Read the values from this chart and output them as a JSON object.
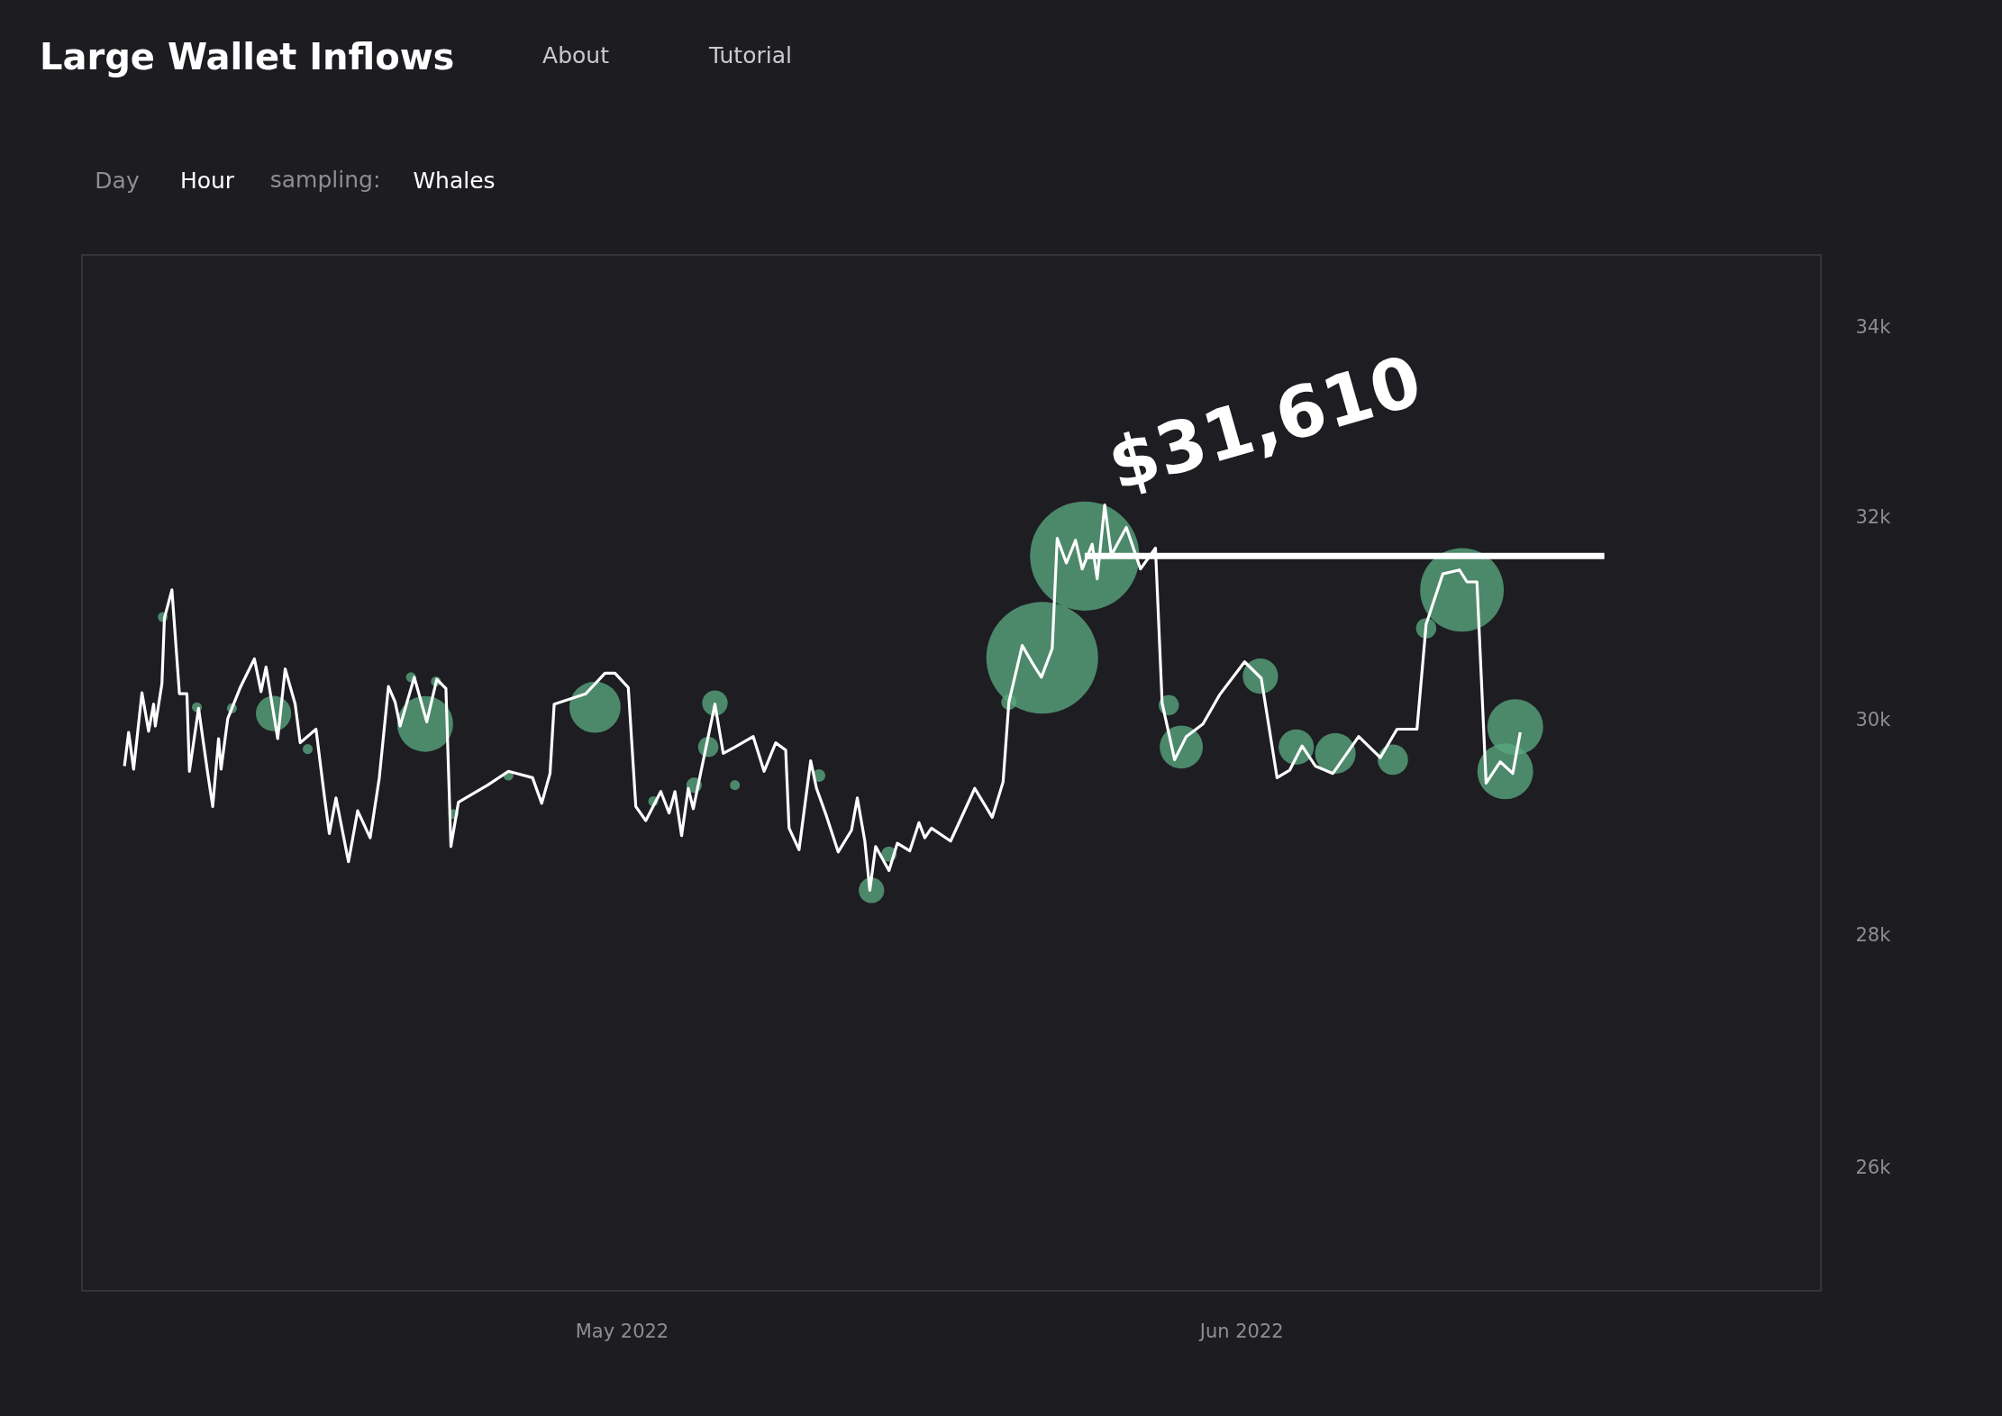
{
  "chart_data": {
    "type": "line",
    "title": "Large Wallet Inflows",
    "annotations": [
      "About",
      "Tutorial",
      "Day",
      "Hour",
      "sampling:",
      "Whales",
      {
        "text": "$31,610",
        "x": "2022-06-04T02:00",
        "y": 31610
      }
    ],
    "log": "y",
    "grid": false,
    "xlim": [
      "2022-04-04",
      "2022-06-30"
    ],
    "xticks": [
      {
        "value": "2022-05-01",
        "label": "May 2022"
      },
      {
        "value": "2022-06-01",
        "label": "Jun 2022"
      }
    ],
    "ylim": [
      25000,
      34800
    ],
    "yticks": [
      {
        "value": 26000,
        "label": "26k"
      },
      {
        "value": 28000,
        "label": "28k"
      },
      {
        "value": 30000,
        "label": "30k"
      },
      {
        "value": 32000,
        "label": "32k"
      },
      {
        "value": 34000,
        "label": "34k"
      }
    ],
    "series": [
      {
        "color": "#ffffff",
        "x": [
          "2022-04-06T03:00",
          "2022-04-06T08:00",
          "2022-04-06T14:00",
          "2022-04-07T00:00",
          "2022-04-07T08:00",
          "2022-04-07T14:00",
          "2022-04-07T16:00",
          "2022-04-08T00:00",
          "2022-04-08T03:00",
          "2022-04-08T12:00",
          "2022-04-08T21:00",
          "2022-04-09T06:00",
          "2022-04-09T09:00",
          "2022-04-09T20:00",
          "2022-04-10T07:00",
          "2022-04-10T13:00",
          "2022-04-10T20:00",
          "2022-04-10T23:00",
          "2022-04-11T07:00",
          "2022-04-11T22:00",
          "2022-04-12T15:00",
          "2022-04-12T23:00",
          "2022-04-13T05:00",
          "2022-04-13T19:00",
          "2022-04-14T04:00",
          "2022-04-14T16:00",
          "2022-04-14T22:00",
          "2022-04-15T17:00",
          "2022-04-16T03:00",
          "2022-04-16T09:00",
          "2022-04-16T17:00",
          "2022-04-17T08:00",
          "2022-04-17T19:00",
          "2022-04-18T10:00",
          "2022-04-18T21:00",
          "2022-04-19T08:00",
          "2022-04-19T16:00",
          "2022-04-19T22:00",
          "2022-04-20T15:00",
          "2022-04-21T06:00",
          "2022-04-21T18:00",
          "2022-04-22T05:00",
          "2022-04-22T11:00",
          "2022-04-22T20:00",
          "2022-04-24T07:00",
          "2022-04-25T08:00",
          "2022-04-26T13:00",
          "2022-04-27T00:00",
          "2022-04-27T10:00",
          "2022-04-27T15:00",
          "2022-04-29T05:00",
          "2022-04-30T04:00",
          "2022-04-30T16:00",
          "2022-05-01T08:00",
          "2022-05-01T17:00",
          "2022-05-02T05:00",
          "2022-05-02T23:00",
          "2022-05-03T09:00",
          "2022-05-03T16:00",
          "2022-05-04T00:00",
          "2022-05-04T08:00",
          "2022-05-04T14:00",
          "2022-05-05T16:00",
          "2022-05-06T02:00",
          "2022-05-06T16:00",
          "2022-05-07T14:00",
          "2022-05-08T03:00",
          "2022-05-08T17:00",
          "2022-05-09T05:00",
          "2022-05-09T09:00",
          "2022-05-09T21:00",
          "2022-05-10T11:00",
          "2022-05-10T18:00",
          "2022-05-11T06:00",
          "2022-05-11T20:00",
          "2022-05-12T12:00",
          "2022-05-12T19:00",
          "2022-05-13T04:00",
          "2022-05-13T10:00",
          "2022-05-13T17:00",
          "2022-05-14T09:00",
          "2022-05-14T19:00",
          "2022-05-15T10:00",
          "2022-05-15T21:00",
          "2022-05-16T04:00",
          "2022-05-16T12:00",
          "2022-05-17T11:00",
          "2022-05-18T16:00",
          "2022-05-19T13:00",
          "2022-05-20T02:00",
          "2022-05-20T09:00",
          "2022-05-21T01:00",
          "2022-05-21T13:00",
          "2022-05-22T00:00",
          "2022-05-22T13:00",
          "2022-05-22T19:00",
          "2022-05-23T06:00",
          "2022-05-23T17:00",
          "2022-05-24T01:00",
          "2022-05-24T13:00",
          "2022-05-24T19:00",
          "2022-05-25T04:00",
          "2022-05-25T12:00",
          "2022-05-26T06:00",
          "2022-05-26T23:00",
          "2022-05-27T17:00",
          "2022-05-28T01:00",
          "2022-05-28T16:00",
          "2022-05-29T06:00",
          "2022-05-30T02:00",
          "2022-05-30T22:00",
          "2022-06-01T04:00",
          "2022-06-02T00:00",
          "2022-06-02T19:00",
          "2022-06-03T10:00",
          "2022-06-04T01:00",
          "2022-06-04T17:00",
          "2022-06-05T14:00",
          "2022-06-06T21:00",
          "2022-06-07T23:00",
          "2022-06-08T19:00",
          "2022-06-09T19:00",
          "2022-06-10T06:00",
          "2022-06-11T02:00",
          "2022-06-11T22:00",
          "2022-06-12T07:00",
          "2022-06-12T19:00",
          "2022-06-13T06:00",
          "2022-06-13T23:00",
          "2022-06-14T14:00",
          "2022-06-14T23:00"
        ],
        "values": [
          29560,
          29880,
          29530,
          30260,
          29890,
          30150,
          29940,
          30350,
          30990,
          31270,
          30250,
          30250,
          29510,
          30110,
          29490,
          29180,
          29820,
          29530,
          30010,
          30310,
          30590,
          30270,
          30510,
          29820,
          30490,
          30150,
          29780,
          29910,
          29280,
          28930,
          29260,
          28670,
          29140,
          28890,
          29450,
          30320,
          30170,
          29940,
          30410,
          29980,
          30390,
          30300,
          28810,
          29220,
          29380,
          29510,
          29450,
          29210,
          29490,
          30150,
          30250,
          30450,
          30450,
          30310,
          29180,
          29050,
          29320,
          29120,
          29320,
          28910,
          29350,
          29160,
          30150,
          29680,
          29740,
          29840,
          29510,
          29780,
          29710,
          28980,
          28780,
          29610,
          29350,
          29090,
          28760,
          28960,
          29260,
          28860,
          28410,
          28810,
          28590,
          28840,
          28770,
          29030,
          28890,
          28980,
          28860,
          29350,
          29080,
          29410,
          30170,
          30720,
          30550,
          30410,
          30690,
          31790,
          31540,
          31770,
          31480,
          31730,
          31380,
          32130,
          31620,
          31900,
          31480,
          31690,
          30160,
          29620,
          29840,
          29960,
          30240,
          30560,
          30400,
          29450,
          29520,
          29750,
          29560,
          29490,
          29840,
          29640,
          29910,
          29910,
          30930,
          31430,
          31470,
          31350,
          31350,
          29400,
          29600,
          29490,
          29880
        ]
      },
      {
        "type": "bubble",
        "color": "#5aa77f",
        "x": [
          "2022-04-08T01:00",
          "2022-04-09T18:00",
          "2022-04-11T12:00",
          "2022-04-13T14:00",
          "2022-04-15T07:00",
          "2022-04-20T11:00",
          "2022-04-21T04:00",
          "2022-04-21T17:00",
          "2022-04-22T14:00",
          "2022-04-25T08:00",
          "2022-04-29T16:00",
          "2022-05-02T14:00",
          "2022-05-04T15:00",
          "2022-05-05T08:00",
          "2022-05-05T16:00",
          "2022-05-06T16:00",
          "2022-05-10T21:00",
          "2022-05-13T12:00",
          "2022-05-14T09:00",
          "2022-05-20T09:00",
          "2022-05-22T01:00",
          "2022-05-24T04:00",
          "2022-05-28T09:00",
          "2022-05-29T00:00",
          "2022-06-01T23:00",
          "2022-06-03T18:00",
          "2022-06-05T17:00",
          "2022-06-08T14:00",
          "2022-06-10T06:00",
          "2022-06-12T01:00",
          "2022-06-14T17:00",
          "2022-06-14T05:00"
        ],
        "values": [
          31000,
          30120,
          30110,
          30060,
          29720,
          30410,
          29960,
          30370,
          29110,
          29470,
          30120,
          29230,
          29380,
          29740,
          30160,
          29380,
          29470,
          28410,
          28740,
          30170,
          30600,
          31610,
          30140,
          29740,
          30420,
          29740,
          29680,
          29620,
          30890,
          31270,
          29930,
          29510
        ],
        "sizes": [
          0.008,
          0.008,
          0.008,
          0.1,
          0.008,
          0.008,
          0.25,
          0.008,
          0.008,
          0.008,
          0.21,
          0.008,
          0.019,
          0.033,
          0.052,
          0.008,
          0.013,
          0.052,
          0.019,
          0.019,
          1,
          0.955,
          0.033,
          0.149,
          0.1,
          0.1,
          0.132,
          0.074,
          0.033,
          0.56,
          0.25,
          0.25
        ]
      },
      {
        "color": "#ffffff",
        "x": [
          "2022-05-24T04:00",
          "2022-06-19T04:00"
        ],
        "values": [
          31610,
          31610
        ]
      }
    ]
  }
}
